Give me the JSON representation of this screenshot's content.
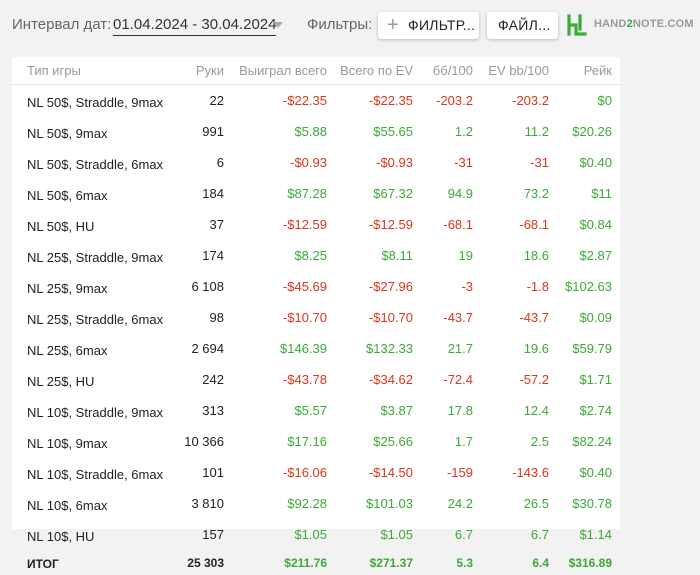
{
  "toolbar": {
    "date_label": "Интервал дат:",
    "date_range": "01.04.2024 - 30.04.2024",
    "filters_label": "Фильтры:",
    "filters_button": "ФИЛЬТР...",
    "file_button": "ФАЙЛ...",
    "logo_text_a": "HAND",
    "logo_text_b": "2",
    "logo_text_c": "NOTE.COM"
  },
  "colors": {
    "positive": "#3aaa35",
    "negative": "#d9361c",
    "logo": "#3aaa35"
  },
  "table": {
    "columns": [
      "Тип игры",
      "Руки",
      "Выиграл всего",
      "Всего по EV",
      "бб/100",
      "EV bb/100",
      "Рейк"
    ],
    "rows": [
      [
        "NL 50$, Straddle, 9max",
        "22",
        "-$22.35",
        "-$22.35",
        "-203.2",
        "-203.2",
        "$0"
      ],
      [
        "NL 50$, 9max",
        "991",
        "$5.88",
        "$55.65",
        "1.2",
        "11.2",
        "$20.26"
      ],
      [
        "NL 50$, Straddle, 6max",
        "6",
        "-$0.93",
        "-$0.93",
        "-31",
        "-31",
        "$0.40"
      ],
      [
        "NL 50$, 6max",
        "184",
        "$87.28",
        "$67.32",
        "94.9",
        "73.2",
        "$11"
      ],
      [
        "NL 50$, HU",
        "37",
        "-$12.59",
        "-$12.59",
        "-68.1",
        "-68.1",
        "$0.84"
      ],
      [
        "NL 25$, Straddle, 9max",
        "174",
        "$8.25",
        "$8.11",
        "19",
        "18.6",
        "$2.87"
      ],
      [
        "NL 25$, 9max",
        "6 108",
        "-$45.69",
        "-$27.96",
        "-3",
        "-1.8",
        "$102.63"
      ],
      [
        "NL 25$, Straddle, 6max",
        "98",
        "-$10.70",
        "-$10.70",
        "-43.7",
        "-43.7",
        "$0.09"
      ],
      [
        "NL 25$, 6max",
        "2 694",
        "$146.39",
        "$132.33",
        "21.7",
        "19.6",
        "$59.79"
      ],
      [
        "NL 25$, HU",
        "242",
        "-$43.78",
        "-$34.62",
        "-72.4",
        "-57.2",
        "$1.71"
      ],
      [
        "NL 10$, Straddle, 9max",
        "313",
        "$5.57",
        "$3.87",
        "17.8",
        "12.4",
        "$2.74"
      ],
      [
        "NL 10$, 9max",
        "10 366",
        "$17.16",
        "$25.66",
        "1.7",
        "2.5",
        "$82.24"
      ],
      [
        "NL 10$, Straddle, 6max",
        "101",
        "-$16.06",
        "-$14.50",
        "-159",
        "-143.6",
        "$0.40"
      ],
      [
        "NL 10$, 6max",
        "3 810",
        "$92.28",
        "$101.03",
        "24.2",
        "26.5",
        "$30.78"
      ],
      [
        "NL 10$, HU",
        "157",
        "$1.05",
        "$1.05",
        "6.7",
        "6.7",
        "$1.14"
      ]
    ],
    "total": [
      "ИТОГ",
      "25 303",
      "$211.76",
      "$271.37",
      "5.3",
      "6.4",
      "$316.89"
    ]
  }
}
